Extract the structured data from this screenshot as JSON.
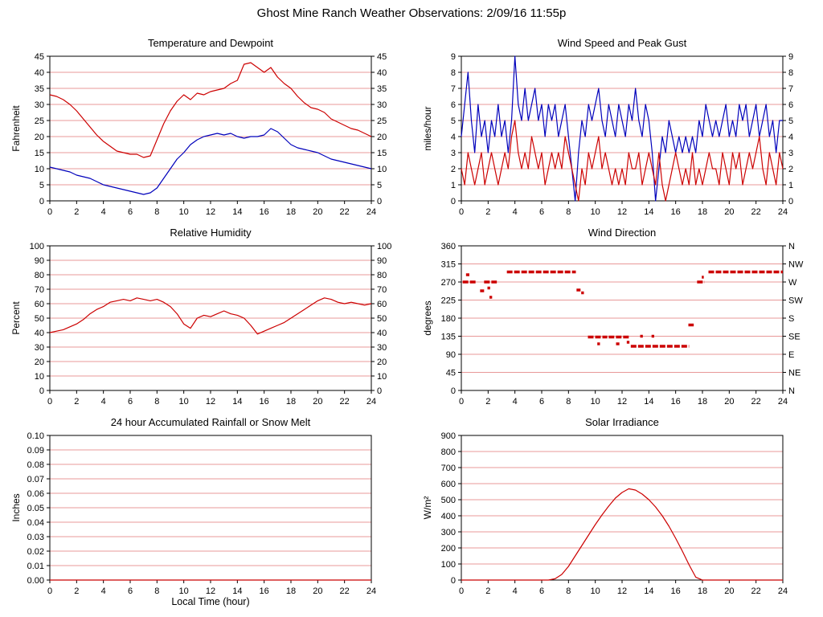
{
  "page": {
    "title": "Ghost Mine Ranch Weather Observations: 2/09/16 11:55p"
  },
  "colors": {
    "red": "#cc0000",
    "blue": "#0000bb",
    "grid": "#e89898",
    "axis": "#000000"
  },
  "chart_data": [
    {
      "type": "line",
      "title": "Temperature and Dewpoint",
      "ylabel": "Fahrenheit",
      "ylim": [
        0,
        45
      ],
      "ytick": 5,
      "ydecimals": 0,
      "xlim": [
        0,
        24
      ],
      "xtick": 2,
      "right": "mirror",
      "series": [
        {
          "name": "temperature",
          "color": "#cc0000",
          "x_start": 0,
          "x_step": 0.5,
          "y": [
            33,
            32.5,
            31.5,
            30,
            28,
            25.5,
            23,
            20.5,
            18.5,
            17,
            15.5,
            15,
            14.5,
            14.5,
            13.5,
            14,
            19,
            24,
            28,
            31,
            33,
            31.5,
            33.5,
            33,
            34,
            34.5,
            35,
            36.5,
            37.5,
            42.5,
            43,
            41.5,
            40,
            41.5,
            38.5,
            36.5,
            35,
            32.5,
            30.5,
            29,
            28.5,
            27.5,
            25.5,
            24.5,
            23.5,
            22.5,
            22,
            21,
            20
          ]
        },
        {
          "name": "dewpoint",
          "color": "#0000bb",
          "x_start": 0,
          "x_step": 0.5,
          "y": [
            10.5,
            10,
            9.5,
            9,
            8,
            7.5,
            7,
            6,
            5,
            4.5,
            4,
            3.5,
            3,
            2.5,
            2,
            2.5,
            4,
            7,
            10,
            13,
            15,
            17.5,
            19,
            20,
            20.5,
            21,
            20.5,
            21,
            20,
            19.5,
            20,
            20,
            20.5,
            22.5,
            21.5,
            19.5,
            17.5,
            16.5,
            16,
            15.5,
            15,
            14,
            13,
            12.5,
            12,
            11.5,
            11,
            10.5,
            10
          ]
        }
      ]
    },
    {
      "type": "line",
      "title": "Wind Speed and Peak Gust",
      "ylabel": "miles/hour",
      "ylim": [
        0,
        9
      ],
      "ytick": 1,
      "ydecimals": 0,
      "xlim": [
        0,
        24
      ],
      "xtick": 2,
      "right": "mirror",
      "series": [
        {
          "name": "peak-gust",
          "color": "#0000bb",
          "x_start": 0,
          "x_step": 0.25,
          "y": [
            4,
            6,
            8,
            5,
            3,
            6,
            4,
            5,
            3,
            5,
            4,
            6,
            4,
            5,
            3,
            5,
            9,
            6,
            5,
            7,
            5,
            6,
            7,
            5,
            6,
            4,
            6,
            5,
            6,
            4,
            5,
            6,
            4,
            2,
            0,
            3,
            5,
            4,
            6,
            5,
            6,
            7,
            5,
            4,
            6,
            5,
            4,
            6,
            5,
            4,
            6,
            5,
            7,
            5,
            4,
            6,
            5,
            3,
            0,
            2,
            4,
            3,
            5,
            4,
            3,
            4,
            3,
            4,
            3,
            4,
            3,
            5,
            4,
            6,
            5,
            4,
            5,
            4,
            5,
            6,
            4,
            5,
            4,
            6,
            5,
            6,
            4,
            5,
            6,
            4,
            5,
            6,
            4,
            5,
            3,
            5,
            5
          ]
        },
        {
          "name": "wind-speed",
          "color": "#cc0000",
          "x_start": 0,
          "x_step": 0.25,
          "y": [
            2,
            1,
            3,
            2,
            1,
            2,
            3,
            1,
            2,
            3,
            2,
            1,
            2,
            3,
            2,
            4,
            5,
            3,
            2,
            3,
            2,
            4,
            3,
            2,
            3,
            1,
            2,
            3,
            2,
            3,
            2,
            4,
            3,
            2,
            1,
            0,
            2,
            1,
            3,
            2,
            3,
            4,
            2,
            3,
            2,
            1,
            2,
            1,
            2,
            1,
            3,
            2,
            2,
            3,
            1,
            2,
            3,
            2,
            1,
            3,
            1,
            0,
            1,
            2,
            3,
            2,
            1,
            2,
            1,
            3,
            1,
            2,
            1,
            2,
            3,
            2,
            2,
            1,
            3,
            2,
            1,
            3,
            2,
            3,
            1,
            2,
            3,
            2,
            3,
            4,
            2,
            1,
            3,
            2,
            1,
            3,
            2
          ]
        }
      ]
    },
    {
      "type": "line",
      "title": "Relative Humidity",
      "ylabel": "Percent",
      "ylim": [
        0,
        100
      ],
      "ytick": 10,
      "ydecimals": 0,
      "xlim": [
        0,
        24
      ],
      "xtick": 2,
      "right": "mirror",
      "series": [
        {
          "name": "humidity",
          "color": "#cc0000",
          "x_start": 0,
          "x_step": 0.5,
          "y": [
            40,
            41,
            42,
            44,
            46,
            49,
            53,
            56,
            58,
            61,
            62,
            63,
            62,
            64,
            63,
            62,
            63,
            61,
            58,
            53,
            46,
            43,
            50,
            52,
            51,
            53,
            55,
            53,
            52,
            50,
            45,
            39,
            41,
            43,
            45,
            47,
            50,
            53,
            56,
            59,
            62,
            64,
            63,
            61,
            60,
            61,
            60,
            59,
            60
          ]
        }
      ]
    },
    {
      "type": "scatter",
      "title": "Wind Direction",
      "ylabel": "degrees",
      "ylim": [
        0,
        360
      ],
      "ytick": 45,
      "ydecimals": 0,
      "xlim": [
        0,
        24
      ],
      "xtick": 2,
      "right": "compass",
      "compass_labels": [
        "N",
        "NE",
        "E",
        "SE",
        "S",
        "SW",
        "W",
        "NW",
        "N"
      ],
      "series": [
        {
          "name": "wind-direction",
          "color": "#cc0000",
          "segments": [
            [
              0.1,
              1.15,
              270
            ],
            [
              0.35,
              0.6,
              288
            ],
            [
              1.4,
              1.7,
              248
            ],
            [
              1.7,
              2.65,
              270
            ],
            [
              1.95,
              2.15,
              255
            ],
            [
              2.1,
              2.3,
              232
            ],
            [
              3.4,
              8.55,
              295
            ],
            [
              8.6,
              8.9,
              250
            ],
            [
              8.95,
              9.15,
              243
            ],
            [
              9.45,
              10.9,
              133
            ],
            [
              10.15,
              10.35,
              116
            ],
            [
              11.0,
              12.55,
              133
            ],
            [
              11.55,
              11.8,
              116
            ],
            [
              12.35,
              12.55,
              120
            ],
            [
              12.65,
              17.0,
              110
            ],
            [
              13.35,
              13.55,
              135
            ],
            [
              14.2,
              14.4,
              135
            ],
            [
              16.95,
              17.35,
              163
            ],
            [
              17.6,
              18.15,
              270
            ],
            [
              17.95,
              18.1,
              282
            ],
            [
              18.45,
              24.0,
              295
            ]
          ]
        }
      ]
    },
    {
      "type": "line",
      "title": "24 hour Accumulated Rainfall or Snow Melt",
      "ylabel": "Inches",
      "xlabel": "Local Time (hour)",
      "ylim": [
        0,
        0.1
      ],
      "ytick": 0.01,
      "ydecimals": 2,
      "xlim": [
        0,
        24
      ],
      "xtick": 2,
      "right": "none",
      "series": [
        {
          "name": "rainfall",
          "color": "#cc0000",
          "x_start": 0,
          "x_step": 24,
          "y": [
            0,
            0
          ]
        }
      ]
    },
    {
      "type": "line",
      "title": "Solar Irradiance",
      "ylabel": "W/m²",
      "ylim": [
        0,
        900
      ],
      "ytick": 100,
      "ydecimals": 0,
      "xlim": [
        0,
        24
      ],
      "xtick": 2,
      "right": "none",
      "series": [
        {
          "name": "solar-irradiance",
          "color": "#cc0000",
          "x_start": 0,
          "x_step": 0.5,
          "y": [
            0,
            0,
            0,
            0,
            0,
            0,
            0,
            0,
            0,
            0,
            0,
            0,
            0,
            0,
            8,
            35,
            85,
            150,
            215,
            280,
            345,
            405,
            460,
            510,
            545,
            568,
            560,
            535,
            500,
            455,
            400,
            335,
            260,
            180,
            95,
            18,
            0,
            0,
            0,
            0,
            0,
            0,
            0,
            0,
            0,
            0,
            0,
            0,
            0
          ]
        }
      ]
    }
  ]
}
